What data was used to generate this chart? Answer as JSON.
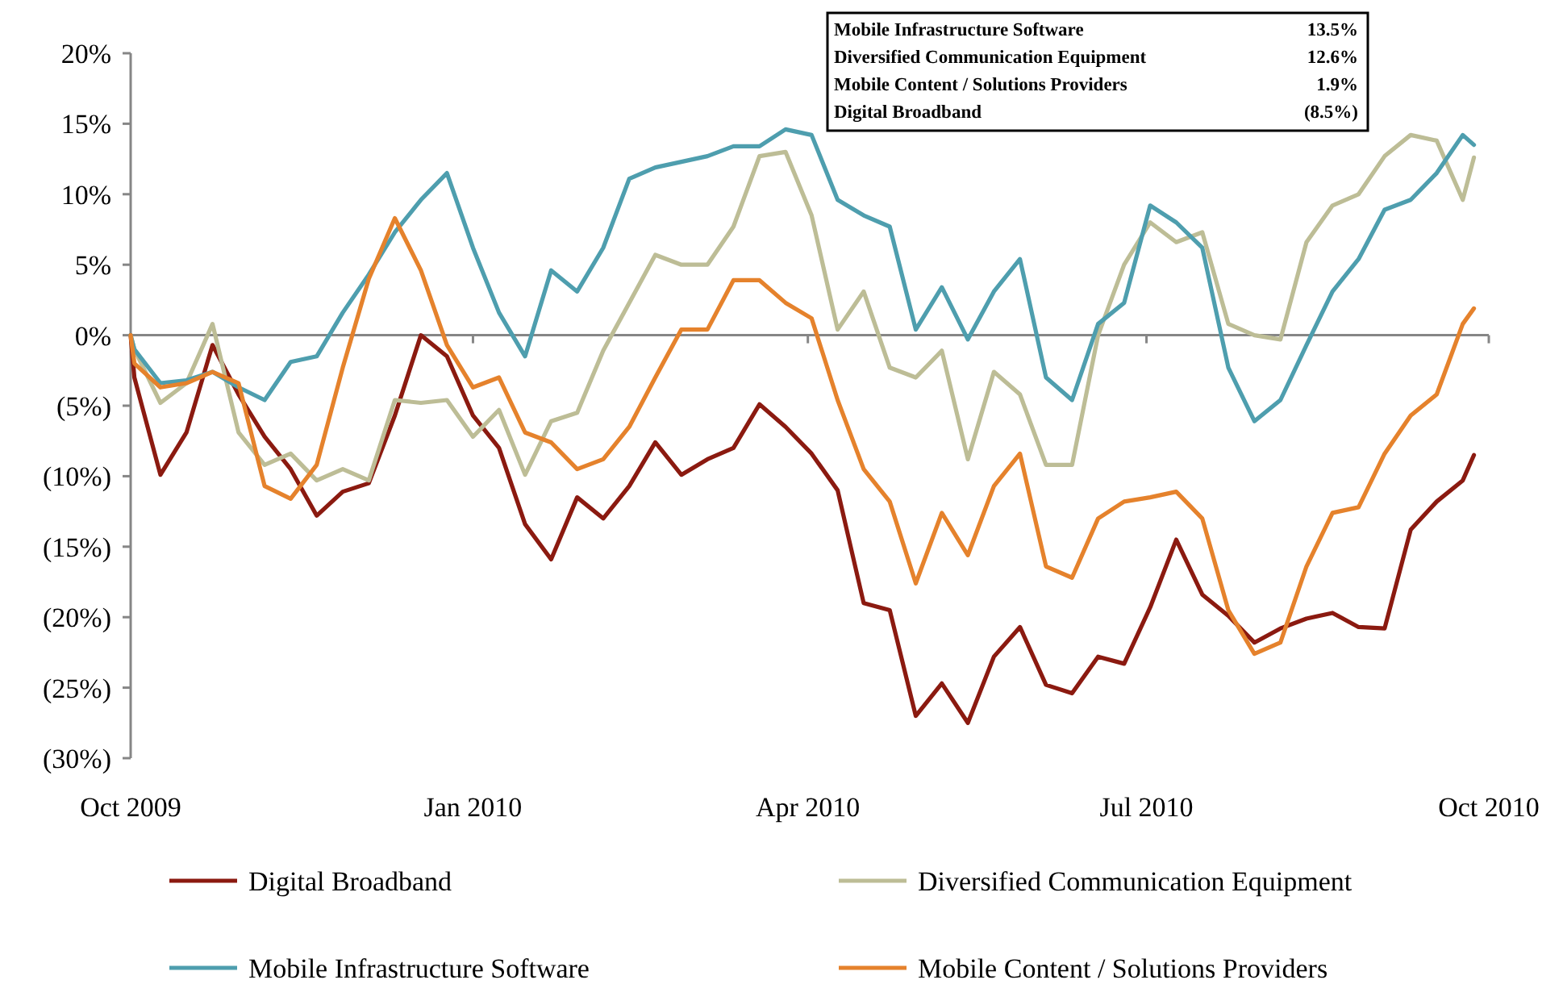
{
  "chart_data": {
    "type": "line",
    "x": [
      "2009-10-01",
      "2009-10-02",
      "2009-10-09",
      "2009-10-16",
      "2009-10-23",
      "2009-10-30",
      "2009-11-06",
      "2009-11-13",
      "2009-11-20",
      "2009-11-27",
      "2009-12-04",
      "2009-12-11",
      "2009-12-18",
      "2009-12-25",
      "2010-01-01",
      "2010-01-08",
      "2010-01-15",
      "2010-01-22",
      "2010-01-29",
      "2010-02-05",
      "2010-02-12",
      "2010-02-19",
      "2010-02-26",
      "2010-03-05",
      "2010-03-12",
      "2010-03-19",
      "2010-03-26",
      "2010-04-02",
      "2010-04-09",
      "2010-04-16",
      "2010-04-23",
      "2010-04-30",
      "2010-05-07",
      "2010-05-14",
      "2010-05-21",
      "2010-05-28",
      "2010-06-04",
      "2010-06-11",
      "2010-06-18",
      "2010-06-25",
      "2010-07-02",
      "2010-07-09",
      "2010-07-16",
      "2010-07-23",
      "2010-07-30",
      "2010-08-06",
      "2010-08-13",
      "2010-08-20",
      "2010-08-27",
      "2010-09-03",
      "2010-09-10",
      "2010-09-17",
      "2010-09-24",
      "2010-09-27"
    ],
    "series": [
      {
        "name": "Digital Broadband",
        "color": "#8b1a10",
        "values": [
          0,
          -3,
          -9.9,
          -6.9,
          -0.7,
          -4.2,
          -7.2,
          -9.5,
          -12.8,
          -11.1,
          -10.5,
          -5.7,
          0,
          -1.5,
          -5.7,
          -8,
          -13.4,
          -15.9,
          -11.5,
          -13,
          -10.7,
          -7.6,
          -9.9,
          -8.8,
          -8,
          -4.9,
          -6.5,
          -8.4,
          -11,
          -19,
          -19.5,
          -27,
          -24.7,
          -27.5,
          -22.8,
          -20.7,
          -24.8,
          -25.4,
          -22.8,
          -23.3,
          -19.3,
          -14.5,
          -18.4,
          -19.9,
          -21.8,
          -20.8,
          -20.1,
          -19.7,
          -20.7,
          -20.8,
          -13.8,
          -11.8,
          -10.3,
          -8.5
        ]
      },
      {
        "name": "Diversified Communication Equipment",
        "color": "#bdbd96",
        "values": [
          0,
          -1,
          -4.8,
          -3.4,
          0.8,
          -6.9,
          -9.2,
          -8.4,
          -10.3,
          -9.5,
          -10.3,
          -4.6,
          -4.8,
          -4.6,
          -7.2,
          -5.3,
          -9.9,
          -6.1,
          -5.5,
          -1.1,
          2.3,
          5.7,
          5,
          5,
          7.7,
          12.7,
          13,
          8.5,
          0.4,
          3.1,
          -2.3,
          -3,
          -1.1,
          -8.8,
          -2.6,
          -4.2,
          -9.2,
          -9.2,
          0,
          5,
          8,
          6.6,
          7.3,
          0.8,
          0,
          -0.3,
          6.6,
          9.2,
          10,
          12.7,
          14.2,
          13.8,
          9.6,
          12.6
        ]
      },
      {
        "name": "Mobile Infrastructure Software",
        "color": "#4e9eae",
        "values": [
          0,
          -1,
          -3.4,
          -3.2,
          -2.6,
          -3.7,
          -4.6,
          -1.9,
          -1.5,
          1.6,
          4.3,
          7.3,
          9.6,
          11.5,
          6.2,
          1.6,
          -1.5,
          4.6,
          3.1,
          6.2,
          11.1,
          11.9,
          12.3,
          12.7,
          13.4,
          13.4,
          14.6,
          14.2,
          9.6,
          8.5,
          7.7,
          0.4,
          3.4,
          -0.3,
          3.1,
          5.4,
          -3,
          -4.6,
          0.8,
          2.3,
          9.2,
          8,
          6.2,
          -2.3,
          -6.1,
          -4.6,
          -0.7,
          3.1,
          5.4,
          8.9,
          9.6,
          11.5,
          14.2,
          13.5
        ]
      },
      {
        "name": "Mobile Content / Solutions Providers",
        "color": "#e5822c",
        "values": [
          0,
          -2,
          -3.7,
          -3.4,
          -2.6,
          -3.4,
          -10.7,
          -11.6,
          -9.2,
          -2.3,
          4,
          8.3,
          4.6,
          -0.7,
          -3.7,
          -3,
          -6.9,
          -7.6,
          -9.5,
          -8.8,
          -6.5,
          -3,
          0.4,
          0.4,
          3.9,
          3.9,
          2.3,
          1.2,
          -4.6,
          -9.5,
          -11.8,
          -17.6,
          -12.6,
          -15.6,
          -10.7,
          -8.4,
          -16.4,
          -17.2,
          -13,
          -11.8,
          -11.5,
          -11.1,
          -13,
          -19.5,
          -22.6,
          -21.8,
          -16.4,
          -12.6,
          -12.2,
          -8.4,
          -5.7,
          -4.2,
          0.8,
          1.9
        ]
      }
    ],
    "xlim": [
      "2009-10-01",
      "2010-10-01"
    ],
    "xticks": [
      {
        "value": "2009-10-01",
        "label": "Oct 2009"
      },
      {
        "value": "2010-01-01",
        "label": "Jan 2010"
      },
      {
        "value": "2010-04-01",
        "label": "Apr 2010"
      },
      {
        "value": "2010-07-01",
        "label": "Jul 2010"
      },
      {
        "value": "2010-10-01",
        "label": "Oct 2010"
      }
    ],
    "ylim": [
      -30,
      20
    ],
    "yticks": [
      {
        "value": 20,
        "label": "20%"
      },
      {
        "value": 15,
        "label": "15%"
      },
      {
        "value": 10,
        "label": "10%"
      },
      {
        "value": 5,
        "label": "5%"
      },
      {
        "value": 0,
        "label": "0%"
      },
      {
        "value": -5,
        "label": "(5%)"
      },
      {
        "value": -10,
        "label": "(10%)"
      },
      {
        "value": -15,
        "label": "(15%)"
      },
      {
        "value": -20,
        "label": "(20%)"
      },
      {
        "value": -25,
        "label": "(25%)"
      },
      {
        "value": -30,
        "label": "(30%)"
      }
    ],
    "annotations": [
      "Mobile Infrastructure Software",
      "13.5%",
      "Diversified Communication Equipment",
      "12.6%",
      "Mobile Content / Solutions Providers",
      "1.9%",
      "Digital Broadband",
      "(8.5%)"
    ],
    "legend": "bottom",
    "line_style": "solid",
    "marker": "none"
  }
}
